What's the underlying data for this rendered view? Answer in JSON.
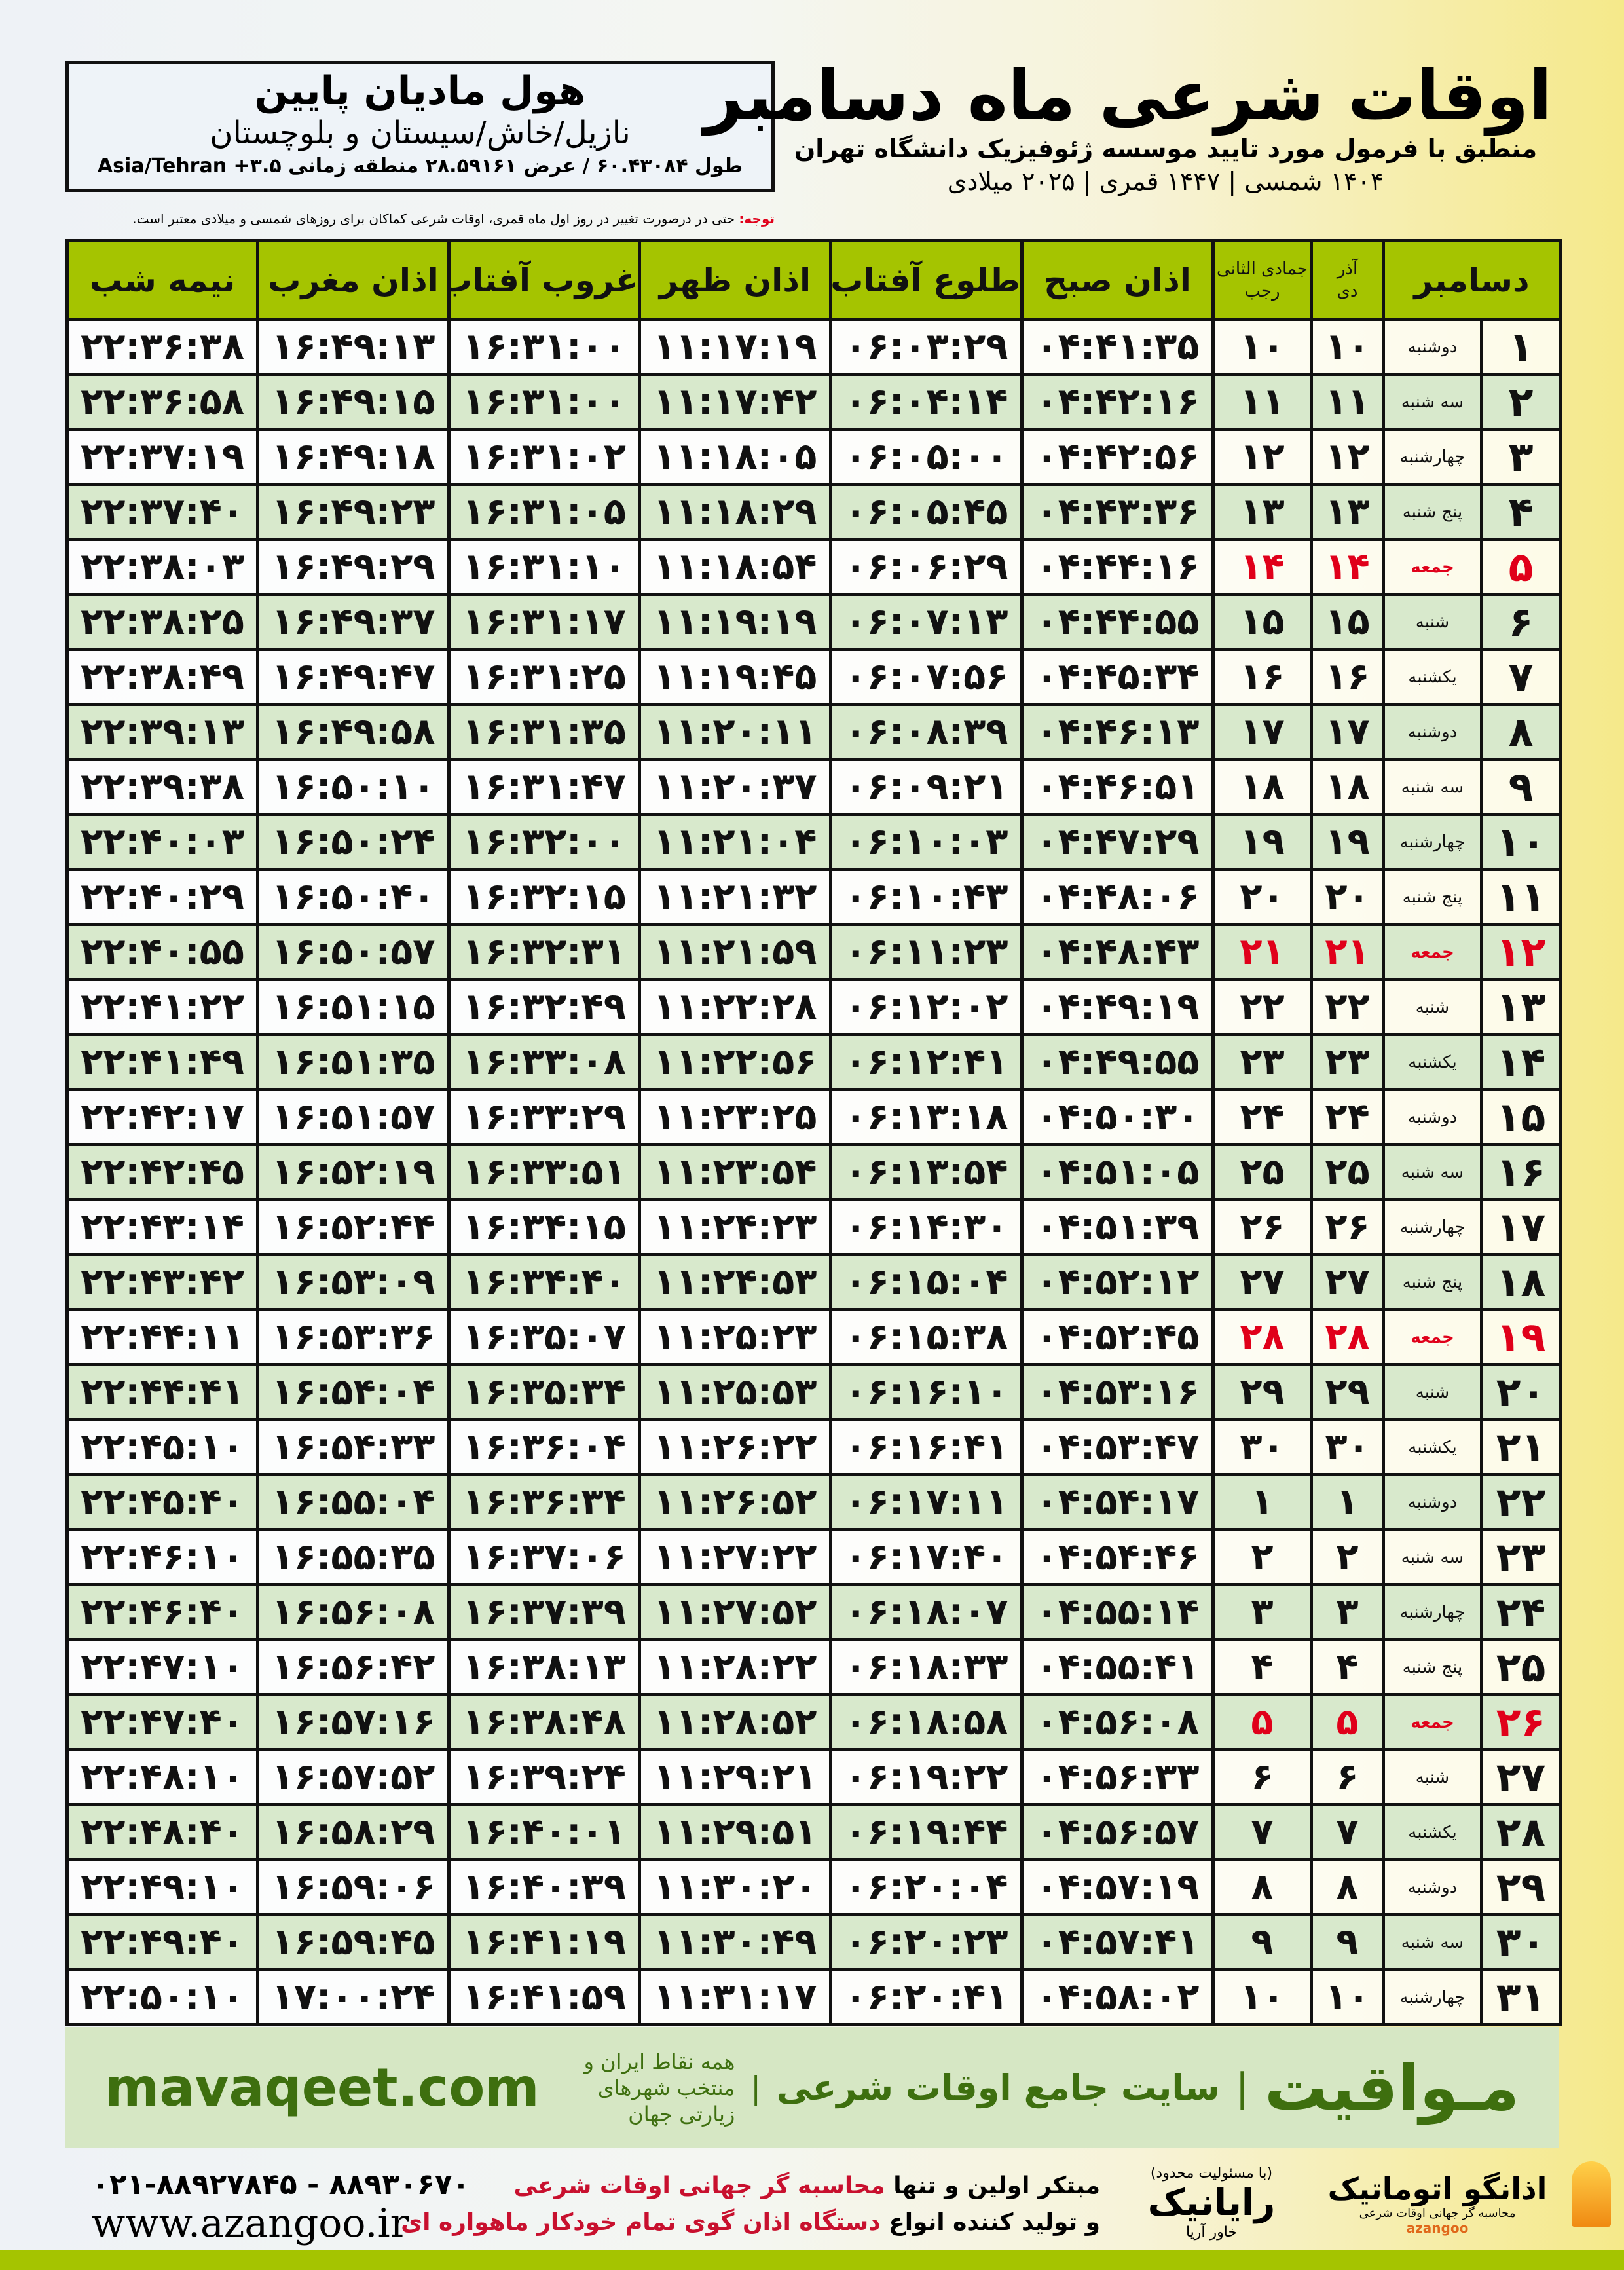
{
  "location": {
    "name": "هول مادیان پایین",
    "region": "نازیل/خاش/سیستان و بلوچستان",
    "coords": "طول ۶۰.۴۳۰۸۴ / عرض ۲۸.۵۹۱۶۱ منطقه زمانی Asia/Tehran +۳.۵"
  },
  "title": {
    "main": "اوقات شرعی ماه دسامبر",
    "subtitle": "منطبق با فرمول مورد تایید موسسه ژئوفیزیک دانشگاه تهران",
    "years": "۱۴۰۴ شمسی | ۱۴۴۷ قمری | ۲۰۲۵ میلادی"
  },
  "note": {
    "label": "توجه:",
    "text": " حتی در درصورت تغییر در روز اول ماه قمری، اوقات شرعی کماکان برای روزهای شمسی و میلادی معتبر است."
  },
  "table": {
    "headers": {
      "month": "دسامبر",
      "shamsi_top": "آذر",
      "shamsi_bottom": "دی",
      "hijri_top": "جمادی الثانی",
      "hijri_bottom": "رجب",
      "fajr": "اذان صبح",
      "sunrise": "طلوع آفتاب",
      "dhuhr": "اذان ظهر",
      "sunset": "غروب آفتاب",
      "maghrib": "اذان مغرب",
      "midnight": "نیمه شب"
    },
    "holiday_color": "#e0001a",
    "rows": [
      [
        "۱",
        "دوشنبه",
        "۱۰",
        "۱۰",
        "۰۴:۴۱:۳۵",
        "۰۶:۰۳:۲۹",
        "۱۱:۱۷:۱۹",
        "۱۶:۳۱:۰۰",
        "۱۶:۴۹:۱۳",
        "۲۲:۳۶:۳۸"
      ],
      [
        "۲",
        "سه شنبه",
        "۱۱",
        "۱۱",
        "۰۴:۴۲:۱۶",
        "۰۶:۰۴:۱۴",
        "۱۱:۱۷:۴۲",
        "۱۶:۳۱:۰۰",
        "۱۶:۴۹:۱۵",
        "۲۲:۳۶:۵۸"
      ],
      [
        "۳",
        "چهارشنبه",
        "۱۲",
        "۱۲",
        "۰۴:۴۲:۵۶",
        "۰۶:۰۵:۰۰",
        "۱۱:۱۸:۰۵",
        "۱۶:۳۱:۰۲",
        "۱۶:۴۹:۱۸",
        "۲۲:۳۷:۱۹"
      ],
      [
        "۴",
        "پنج شنبه",
        "۱۳",
        "۱۳",
        "۰۴:۴۳:۳۶",
        "۰۶:۰۵:۴۵",
        "۱۱:۱۸:۲۹",
        "۱۶:۳۱:۰۵",
        "۱۶:۴۹:۲۳",
        "۲۲:۳۷:۴۰"
      ],
      [
        "۵",
        "جمعه",
        "۱۴",
        "۱۴",
        "۰۴:۴۴:۱۶",
        "۰۶:۰۶:۲۹",
        "۱۱:۱۸:۵۴",
        "۱۶:۳۱:۱۰",
        "۱۶:۴۹:۲۹",
        "۲۲:۳۸:۰۳"
      ],
      [
        "۶",
        "شنبه",
        "۱۵",
        "۱۵",
        "۰۴:۴۴:۵۵",
        "۰۶:۰۷:۱۳",
        "۱۱:۱۹:۱۹",
        "۱۶:۳۱:۱۷",
        "۱۶:۴۹:۳۷",
        "۲۲:۳۸:۲۵"
      ],
      [
        "۷",
        "یکشنبه",
        "۱۶",
        "۱۶",
        "۰۴:۴۵:۳۴",
        "۰۶:۰۷:۵۶",
        "۱۱:۱۹:۴۵",
        "۱۶:۳۱:۲۵",
        "۱۶:۴۹:۴۷",
        "۲۲:۳۸:۴۹"
      ],
      [
        "۸",
        "دوشنبه",
        "۱۷",
        "۱۷",
        "۰۴:۴۶:۱۳",
        "۰۶:۰۸:۳۹",
        "۱۱:۲۰:۱۱",
        "۱۶:۳۱:۳۵",
        "۱۶:۴۹:۵۸",
        "۲۲:۳۹:۱۳"
      ],
      [
        "۹",
        "سه شنبه",
        "۱۸",
        "۱۸",
        "۰۴:۴۶:۵۱",
        "۰۶:۰۹:۲۱",
        "۱۱:۲۰:۳۷",
        "۱۶:۳۱:۴۷",
        "۱۶:۵۰:۱۰",
        "۲۲:۳۹:۳۸"
      ],
      [
        "۱۰",
        "چهارشنبه",
        "۱۹",
        "۱۹",
        "۰۴:۴۷:۲۹",
        "۰۶:۱۰:۰۳",
        "۱۱:۲۱:۰۴",
        "۱۶:۳۲:۰۰",
        "۱۶:۵۰:۲۴",
        "۲۲:۴۰:۰۳"
      ],
      [
        "۱۱",
        "پنج شنبه",
        "۲۰",
        "۲۰",
        "۰۴:۴۸:۰۶",
        "۰۶:۱۰:۴۳",
        "۱۱:۲۱:۳۲",
        "۱۶:۳۲:۱۵",
        "۱۶:۵۰:۴۰",
        "۲۲:۴۰:۲۹"
      ],
      [
        "۱۲",
        "جمعه",
        "۲۱",
        "۲۱",
        "۰۴:۴۸:۴۳",
        "۰۶:۱۱:۲۳",
        "۱۱:۲۱:۵۹",
        "۱۶:۳۲:۳۱",
        "۱۶:۵۰:۵۷",
        "۲۲:۴۰:۵۵"
      ],
      [
        "۱۳",
        "شنبه",
        "۲۲",
        "۲۲",
        "۰۴:۴۹:۱۹",
        "۰۶:۱۲:۰۲",
        "۱۱:۲۲:۲۸",
        "۱۶:۳۲:۴۹",
        "۱۶:۵۱:۱۵",
        "۲۲:۴۱:۲۲"
      ],
      [
        "۱۴",
        "یکشنبه",
        "۲۳",
        "۲۳",
        "۰۴:۴۹:۵۵",
        "۰۶:۱۲:۴۱",
        "۱۱:۲۲:۵۶",
        "۱۶:۳۳:۰۸",
        "۱۶:۵۱:۳۵",
        "۲۲:۴۱:۴۹"
      ],
      [
        "۱۵",
        "دوشنبه",
        "۲۴",
        "۲۴",
        "۰۴:۵۰:۳۰",
        "۰۶:۱۳:۱۸",
        "۱۱:۲۳:۲۵",
        "۱۶:۳۳:۲۹",
        "۱۶:۵۱:۵۷",
        "۲۲:۴۲:۱۷"
      ],
      [
        "۱۶",
        "سه شنبه",
        "۲۵",
        "۲۵",
        "۰۴:۵۱:۰۵",
        "۰۶:۱۳:۵۴",
        "۱۱:۲۳:۵۴",
        "۱۶:۳۳:۵۱",
        "۱۶:۵۲:۱۹",
        "۲۲:۴۲:۴۵"
      ],
      [
        "۱۷",
        "چهارشنبه",
        "۲۶",
        "۲۶",
        "۰۴:۵۱:۳۹",
        "۰۶:۱۴:۳۰",
        "۱۱:۲۴:۲۳",
        "۱۶:۳۴:۱۵",
        "۱۶:۵۲:۴۴",
        "۲۲:۴۳:۱۴"
      ],
      [
        "۱۸",
        "پنج شنبه",
        "۲۷",
        "۲۷",
        "۰۴:۵۲:۱۲",
        "۰۶:۱۵:۰۴",
        "۱۱:۲۴:۵۳",
        "۱۶:۳۴:۴۰",
        "۱۶:۵۳:۰۹",
        "۲۲:۴۳:۴۲"
      ],
      [
        "۱۹",
        "جمعه",
        "۲۸",
        "۲۸",
        "۰۴:۵۲:۴۵",
        "۰۶:۱۵:۳۸",
        "۱۱:۲۵:۲۳",
        "۱۶:۳۵:۰۷",
        "۱۶:۵۳:۳۶",
        "۲۲:۴۴:۱۱"
      ],
      [
        "۲۰",
        "شنبه",
        "۲۹",
        "۲۹",
        "۰۴:۵۳:۱۶",
        "۰۶:۱۶:۱۰",
        "۱۱:۲۵:۵۳",
        "۱۶:۳۵:۳۴",
        "۱۶:۵۴:۰۴",
        "۲۲:۴۴:۴۱"
      ],
      [
        "۲۱",
        "یکشنبه",
        "۳۰",
        "۳۰",
        "۰۴:۵۳:۴۷",
        "۰۶:۱۶:۴۱",
        "۱۱:۲۶:۲۲",
        "۱۶:۳۶:۰۴",
        "۱۶:۵۴:۳۳",
        "۲۲:۴۵:۱۰"
      ],
      [
        "۲۲",
        "دوشنبه",
        "۱",
        "۱",
        "۰۴:۵۴:۱۷",
        "۰۶:۱۷:۱۱",
        "۱۱:۲۶:۵۲",
        "۱۶:۳۶:۳۴",
        "۱۶:۵۵:۰۴",
        "۲۲:۴۵:۴۰"
      ],
      [
        "۲۳",
        "سه شنبه",
        "۲",
        "۲",
        "۰۴:۵۴:۴۶",
        "۰۶:۱۷:۴۰",
        "۱۱:۲۷:۲۲",
        "۱۶:۳۷:۰۶",
        "۱۶:۵۵:۳۵",
        "۲۲:۴۶:۱۰"
      ],
      [
        "۲۴",
        "چهارشنبه",
        "۳",
        "۳",
        "۰۴:۵۵:۱۴",
        "۰۶:۱۸:۰۷",
        "۱۱:۲۷:۵۲",
        "۱۶:۳۷:۳۹",
        "۱۶:۵۶:۰۸",
        "۲۲:۴۶:۴۰"
      ],
      [
        "۲۵",
        "پنج شنبه",
        "۴",
        "۴",
        "۰۴:۵۵:۴۱",
        "۰۶:۱۸:۳۳",
        "۱۱:۲۸:۲۲",
        "۱۶:۳۸:۱۳",
        "۱۶:۵۶:۴۲",
        "۲۲:۴۷:۱۰"
      ],
      [
        "۲۶",
        "جمعه",
        "۵",
        "۵",
        "۰۴:۵۶:۰۸",
        "۰۶:۱۸:۵۸",
        "۱۱:۲۸:۵۲",
        "۱۶:۳۸:۴۸",
        "۱۶:۵۷:۱۶",
        "۲۲:۴۷:۴۰"
      ],
      [
        "۲۷",
        "شنبه",
        "۶",
        "۶",
        "۰۴:۵۶:۳۳",
        "۰۶:۱۹:۲۲",
        "۱۱:۲۹:۲۱",
        "۱۶:۳۹:۲۴",
        "۱۶:۵۷:۵۲",
        "۲۲:۴۸:۱۰"
      ],
      [
        "۲۸",
        "یکشنبه",
        "۷",
        "۷",
        "۰۴:۵۶:۵۷",
        "۰۶:۱۹:۴۴",
        "۱۱:۲۹:۵۱",
        "۱۶:۴۰:۰۱",
        "۱۶:۵۸:۲۹",
        "۲۲:۴۸:۴۰"
      ],
      [
        "۲۹",
        "دوشنبه",
        "۸",
        "۸",
        "۰۴:۵۷:۱۹",
        "۰۶:۲۰:۰۴",
        "۱۱:۳۰:۲۰",
        "۱۶:۴۰:۳۹",
        "۱۶:۵۹:۰۶",
        "۲۲:۴۹:۱۰"
      ],
      [
        "۳۰",
        "سه شنبه",
        "۹",
        "۹",
        "۰۴:۵۷:۴۱",
        "۰۶:۲۰:۲۳",
        "۱۱:۳۰:۴۹",
        "۱۶:۴۱:۱۹",
        "۱۶:۵۹:۴۵",
        "۲۲:۴۹:۴۰"
      ],
      [
        "۳۱",
        "چهارشنبه",
        "۱۰",
        "۱۰",
        "۰۴:۵۸:۰۲",
        "۰۶:۲۰:۴۱",
        "۱۱:۳۱:۱۷",
        "۱۶:۴۱:۵۹",
        "۱۷:۰۰:۲۴",
        "۲۲:۵۰:۱۰"
      ]
    ]
  },
  "band": {
    "brand": "مـواقیت",
    "separator": "|",
    "slogan": "سایت جامع اوقات شرعی",
    "subtitle": "همه نقاط ایران و منتخب شهرهای زیارتی جهان",
    "url": "mavaqeet.com",
    "accent": "#3e6f0f"
  },
  "footer": {
    "phones": "۰۲۱-۸۸۹۲۷۸۴۵ - ۸۸۹۳۰۶۷۰",
    "website": "www.azangoo.ir",
    "promo1_a": "مبتکر اولین و تنها ",
    "promo1_b": "محاسبه گر جهانی اوقات شرعی",
    "promo2_a": "و تولید کننده انواع ",
    "promo2_b": "دستگاه اذان گوی تمام خودکار ماهواره ای",
    "logo_rayanik": "رایانیک",
    "logo_rayanik_small": "خاور آریا",
    "logo_rayanik_note": "(با مسئولیت محدود)",
    "logo_azangoo": "اذانگو اتوماتیک",
    "logo_azangoo_sub": "محاسبه گر جهانی اوقات شرعی",
    "logo_azangoo_latin": "azangoo"
  }
}
